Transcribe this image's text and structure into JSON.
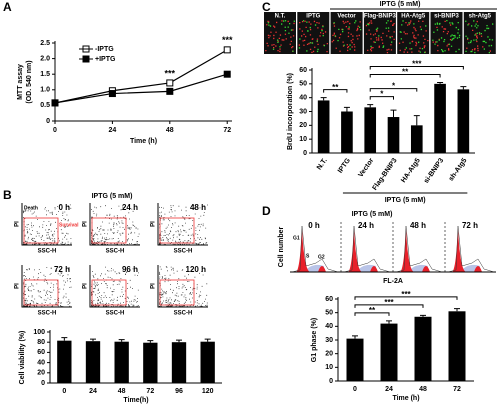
{
  "chart_data": [
    {
      "type": "line",
      "panel": "A",
      "ylabel": [
        "MTT assay",
        "(OD. 540 nm)"
      ],
      "xlabel": "Time (h)",
      "x": [
        0,
        24,
        48,
        72
      ],
      "xlim": [
        0,
        74
      ],
      "xticks": [
        0,
        24,
        48,
        72
      ],
      "ylim": [
        0,
        2.5
      ],
      "yticks": [
        0,
        0.5,
        {
          "value": 1,
          "label": "1.0"
        },
        1.5,
        {
          "value": 2,
          "label": "2.0"
        },
        2.5
      ],
      "series": [
        {
          "name": "-IPTG",
          "color": "#000000",
          "marker": "open-square",
          "values": [
            0.58,
            0.97,
            1.22,
            2.28
          ]
        },
        {
          "name": "+IPTG",
          "color": "#000000",
          "marker": "filled-square",
          "values": [
            0.58,
            0.88,
            0.95,
            1.5
          ]
        }
      ],
      "annotations": [
        {
          "text": "***",
          "x": 48
        },
        {
          "text": "***",
          "x": 72
        }
      ]
    },
    {
      "type": "bar",
      "panel": "B",
      "header": "IPTG (5 mM)",
      "plot_labels": [
        "0 h",
        "24 h",
        "48 h",
        "72 h",
        "96 h",
        "120 h"
      ],
      "gate_labels": [
        "Death",
        "Survival"
      ],
      "plot_axes": [
        "PI",
        "SSC-H"
      ],
      "categories": [
        "0",
        "24",
        "48",
        "72",
        "96",
        "120"
      ],
      "values": [
        83,
        82,
        81,
        79,
        80,
        81
      ],
      "errors": [
        6,
        4,
        4,
        4,
        4,
        5
      ],
      "color": "#000000",
      "ylim": [
        0,
        100
      ],
      "yticks": [
        0,
        20,
        40,
        60,
        80,
        100
      ],
      "ylabel": "Cell viability (%)",
      "xlabel": "Time(h)"
    },
    {
      "type": "bar",
      "panel": "C",
      "header": "IPTG (5 mM)",
      "categories": [
        "N.T.",
        "IPTG",
        "Vector",
        "Flag-BNIP3",
        "HA-Atg5",
        "si-BNIP3",
        "sh-Atg5"
      ],
      "values": [
        38,
        30,
        33,
        26,
        20,
        50,
        46
      ],
      "errors": [
        2,
        3,
        2,
        5,
        7,
        1,
        2
      ],
      "color": "#000000",
      "ylim": [
        0,
        60
      ],
      "yticks": [
        0,
        10,
        20,
        30,
        40,
        50,
        60
      ],
      "ylabel": "BrdU incorporation (%)",
      "xlabel": "IPTG (5 mM)",
      "annotations": [
        {
          "text": "**",
          "between": [
            "N.T.",
            "IPTG"
          ]
        },
        {
          "text": "*",
          "between": [
            "Vector",
            "Flag-BNIP3"
          ]
        },
        {
          "text": "*",
          "between": [
            "Vector",
            "HA-Atg5"
          ]
        },
        {
          "text": "**",
          "between": [
            "Vector",
            "si-BNIP3"
          ]
        },
        {
          "text": "***",
          "between": [
            "Vector",
            "sh-Atg5"
          ]
        }
      ]
    },
    {
      "type": "bar",
      "panel": "D",
      "header": "IPTG (5 mM)",
      "plot_labels": [
        "0 h",
        "24 h",
        "48 h",
        "72 h"
      ],
      "phase_labels": [
        "G1",
        "S",
        "G2"
      ],
      "plot_axes": [
        "Cell number",
        "FL-2A"
      ],
      "categories": [
        "0",
        "24",
        "48",
        "72"
      ],
      "values": [
        31,
        42,
        47,
        51
      ],
      "errors": [
        2,
        2,
        1,
        2
      ],
      "color": "#000000",
      "ylim": [
        0,
        60
      ],
      "yticks": [
        0,
        10,
        20,
        30,
        40,
        50,
        60
      ],
      "ylabel": "G1 phase (%)",
      "xlabel": "Time (h)",
      "annotations": [
        {
          "text": "**",
          "between": [
            "0",
            "24"
          ]
        },
        {
          "text": "***",
          "between": [
            "0",
            "48"
          ]
        },
        {
          "text": "***",
          "between": [
            "0",
            "72"
          ]
        }
      ]
    }
  ]
}
